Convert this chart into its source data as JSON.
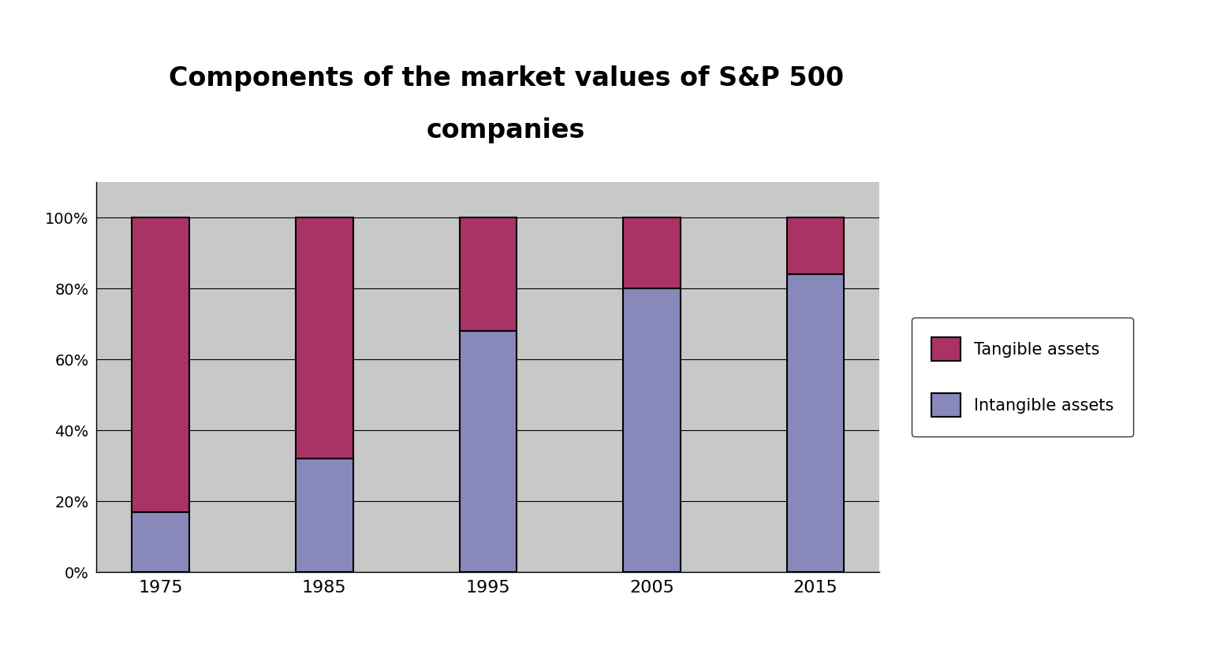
{
  "categories": [
    "1975",
    "1985",
    "1995",
    "2005",
    "2015"
  ],
  "intangible": [
    17,
    32,
    68,
    80,
    84
  ],
  "tangible": [
    83,
    68,
    32,
    20,
    16
  ],
  "intangible_color": "#8888BB",
  "tangible_color": "#AA3366",
  "title_line1": "Components of the market values of S&P 500",
  "title_line2": "companies",
  "title_fontsize": 24,
  "title_fontweight": "bold",
  "legend_labels": [
    "Tangible assets",
    "Intangible assets"
  ],
  "plot_bg_color": "#C8C8C8",
  "outer_bg_color": "#FFFFFF",
  "bar_width": 0.35,
  "ylim": [
    0,
    110
  ],
  "yticks": [
    0,
    20,
    40,
    60,
    80,
    100
  ],
  "ytick_labels": [
    "0%",
    "20%",
    "40%",
    "60%",
    "80%",
    "100%"
  ],
  "xtick_fontsize": 16,
  "ytick_fontsize": 14
}
